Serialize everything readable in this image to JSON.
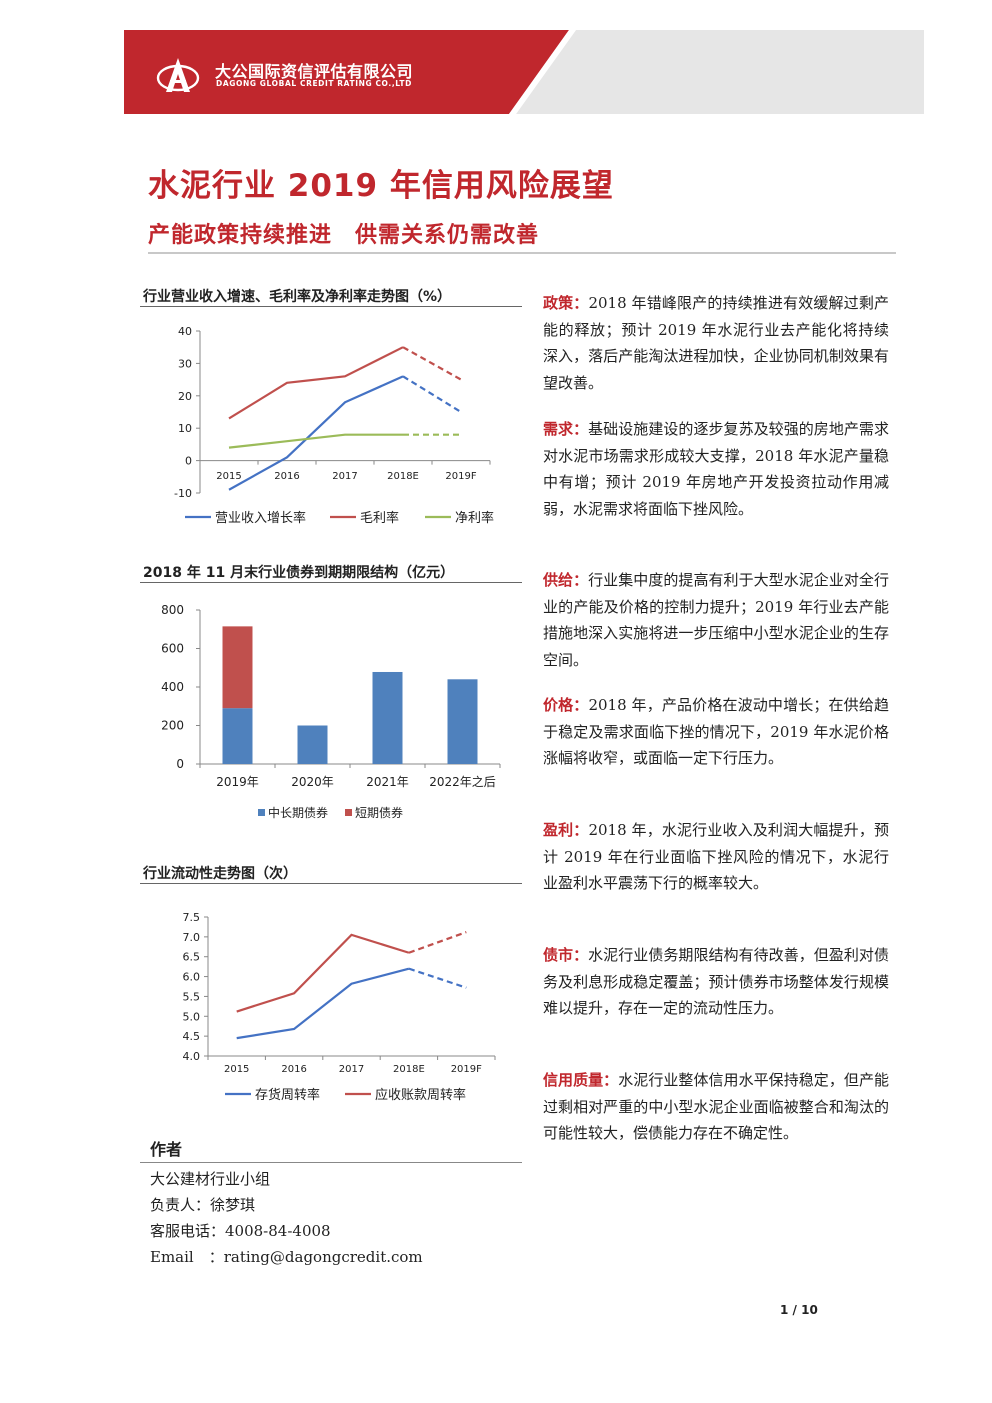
{
  "header": {
    "company_cn": "大公国际资信评估有限公司",
    "company_en": "DAGONG GLOBAL CREDIT RATING CO.,LTD",
    "brand_color": "#c0272d"
  },
  "title": "水泥行业 2019 年信用风险展望",
  "subtitle": "产能政策持续推进　供需关系仍需改善",
  "charts": {
    "chart1_title": "行业营业收入增速、毛利率及净利率走势图（%）",
    "chart2_title": "2018 年 11 月末行业债券到期期限结构（亿元）",
    "chart3_title": "行业流动性走势图（次）"
  },
  "chart_data": [
    {
      "type": "line",
      "x": [
        "2015",
        "2016",
        "2017",
        "2018E",
        "2019F"
      ],
      "ylim": [
        -10,
        40
      ],
      "yticks": [
        "40",
        "30",
        "20",
        "10",
        "0",
        "-10"
      ],
      "series": [
        {
          "name": "营业收入增长率",
          "color": "#4472c4",
          "values": [
            -9,
            1,
            18,
            26,
            15
          ]
        },
        {
          "name": "毛利率",
          "color": "#c0504d",
          "values": [
            13,
            24,
            26,
            35,
            25
          ]
        },
        {
          "name": "净利率",
          "color": "#9bbb59",
          "values": [
            4,
            6,
            8,
            8,
            8
          ]
        }
      ],
      "forecast_from_index": 3
    },
    {
      "type": "bar",
      "stacked": true,
      "categories": [
        "2019年",
        "2020年",
        "2021年",
        "2022年之后"
      ],
      "ylim": [
        0,
        800
      ],
      "yticks": [
        "800",
        "600",
        "400",
        "200",
        "0"
      ],
      "series": [
        {
          "name": "中长期债券",
          "color": "#4f81bd",
          "values": [
            290,
            200,
            478,
            440
          ]
        },
        {
          "name": "短期债券",
          "color": "#c0504d",
          "values": [
            425,
            0,
            0,
            0
          ]
        }
      ]
    },
    {
      "type": "line",
      "x": [
        "2015",
        "2016",
        "2017",
        "2018E",
        "2019F"
      ],
      "ylim": [
        4.0,
        7.5
      ],
      "yticks": [
        "7.5",
        "7.0",
        "6.5",
        "6.0",
        "5.5",
        "5.0",
        "4.5",
        "4.0"
      ],
      "series": [
        {
          "name": "存货周转率",
          "color": "#4472c4",
          "values": [
            4.45,
            4.68,
            5.82,
            6.2,
            5.72
          ]
        },
        {
          "name": "应收账款周转率",
          "color": "#c0504d",
          "values": [
            5.12,
            5.58,
            7.05,
            6.6,
            7.12
          ]
        }
      ],
      "forecast_from_index": 3
    }
  ],
  "paragraphs": [
    {
      "label": "政策：",
      "text": "2018 年错峰限产的持续推进有效缓解过剩产能的释放；预计 2019 年水泥行业去产能化将持续深入，落后产能淘汰进程加快，企业协同机制效果有望改善。"
    },
    {
      "label": "需求：",
      "text": "基础设施建设的逐步复苏及较强的房地产需求对水泥市场需求形成较大支撑，2018 年水泥产量稳中有增；预计 2019 年房地产开发投资拉动作用减弱，水泥需求将面临下挫风险。"
    },
    {
      "label": "供给：",
      "text": "行业集中度的提高有利于大型水泥企业对全行业的产能及价格的控制力提升；2019 年行业去产能措施地深入实施将进一步压缩中小型水泥企业的生存空间。"
    },
    {
      "label": "价格：",
      "text": "2018 年，产品价格在波动中增长；在供给趋于稳定及需求面临下挫的情况下，2019 年水泥价格涨幅将收窄，或面临一定下行压力。"
    },
    {
      "label": "盈利：",
      "text": "2018 年，水泥行业收入及利润大幅提升，预计 2019 年在行业面临下挫风险的情况下，水泥行业盈利水平震荡下行的概率较大。"
    },
    {
      "label": "债市：",
      "text": "水泥行业债务期限结构有待改善，但盈利对债务及利息形成稳定覆盖；预计债券市场整体发行规模难以提升，存在一定的流动性压力。"
    },
    {
      "label": "信用质量：",
      "text": "水泥行业整体信用水平保持稳定，但产能过剩相对严重的中小型水泥企业面临被整合和淘汰的可能性较大，偿债能力存在不确定性。"
    }
  ],
  "author": {
    "heading": "作者",
    "group": "大公建材行业小组",
    "lead": "负责人：徐梦琪",
    "phone": "客服电话：4008-84-4008",
    "email": "Email　：rating@dagongcredit.com"
  },
  "page": "1 / 10"
}
